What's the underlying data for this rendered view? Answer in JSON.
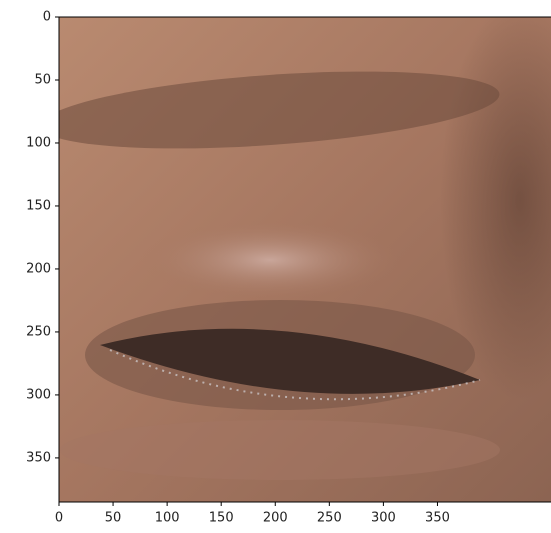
{
  "chart_data": {
    "type": "image",
    "xlim": [
      0,
      455
    ],
    "ylim": [
      385,
      0
    ],
    "xticks": [
      0,
      50,
      100,
      150,
      200,
      250,
      300,
      350
    ],
    "yticks": [
      0,
      50,
      100,
      150,
      200,
      250,
      300,
      350
    ]
  }
}
